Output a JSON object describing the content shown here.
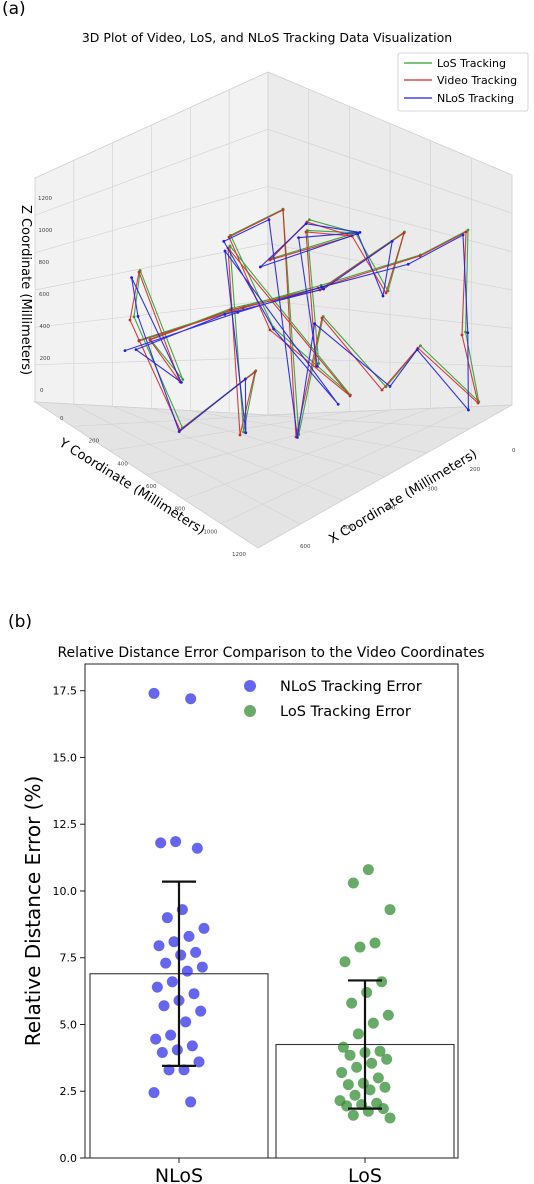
{
  "panel_a": {
    "label": "(a)",
    "chart_data": {
      "type": "line3d",
      "title": "3D Plot of Video, LoS, and NLoS Tracking Data Visualization",
      "xlabel": "X Coordinate (Millimeters)",
      "ylabel": "Y Coordinate (Millimeters)",
      "zlabel": "Z Coordinate (Millimeters)",
      "xticks": [
        "0",
        "200",
        "300",
        "400",
        "500",
        "600"
      ],
      "yticks": [
        "0",
        "200",
        "400",
        "600",
        "800",
        "1000",
        "1200"
      ],
      "zticks": [
        "0",
        "200",
        "400",
        "600",
        "800",
        "1000",
        "1200"
      ],
      "legend": [
        {
          "name": "LoS Tracking",
          "color": "#2ca02c"
        },
        {
          "name": "Video Tracking",
          "color": "#d62728"
        },
        {
          "name": "NLoS Tracking",
          "color": "#1f1fe0"
        }
      ],
      "legend_position": "top-right"
    }
  },
  "panel_b": {
    "label": "(b)",
    "chart_data": {
      "type": "bar",
      "title": "Relative Distance Error Comparison to the Video Coordinates",
      "ylabel": "Relative Distance Error (%)",
      "categories": [
        "NLoS",
        "LoS"
      ],
      "values": [
        6.9,
        4.25
      ],
      "error_low": [
        3.45,
        1.85
      ],
      "error_high": [
        10.35,
        6.65
      ],
      "ylim": [
        0,
        18.5
      ],
      "yticks": [
        "0.0",
        "2.5",
        "5.0",
        "7.5",
        "10.0",
        "12.5",
        "15.0",
        "17.5"
      ],
      "legend_position": "top-right",
      "series": [
        {
          "name": "NLoS Tracking Error",
          "color": "#2a2ae8",
          "points": [
            17.4,
            17.2,
            11.85,
            11.8,
            11.6,
            9.3,
            9.0,
            8.6,
            8.3,
            8.1,
            7.95,
            7.7,
            7.6,
            7.3,
            7.15,
            7.0,
            6.6,
            6.4,
            6.15,
            5.9,
            5.7,
            5.5,
            5.1,
            4.6,
            4.45,
            4.2,
            4.05,
            3.95,
            3.6,
            3.3,
            3.3,
            2.45,
            2.1
          ]
        },
        {
          "name": "LoS Tracking Error",
          "color": "#2e8b2e",
          "points": [
            10.8,
            10.3,
            9.3,
            8.05,
            7.9,
            7.35,
            6.6,
            6.2,
            5.8,
            5.35,
            5.05,
            4.65,
            4.15,
            4.0,
            3.95,
            3.85,
            3.7,
            3.55,
            3.4,
            3.2,
            3.0,
            2.8,
            2.75,
            2.65,
            2.55,
            2.35,
            2.15,
            2.05,
            2.0,
            1.95,
            1.85,
            1.75,
            1.6,
            1.5
          ]
        }
      ]
    }
  }
}
